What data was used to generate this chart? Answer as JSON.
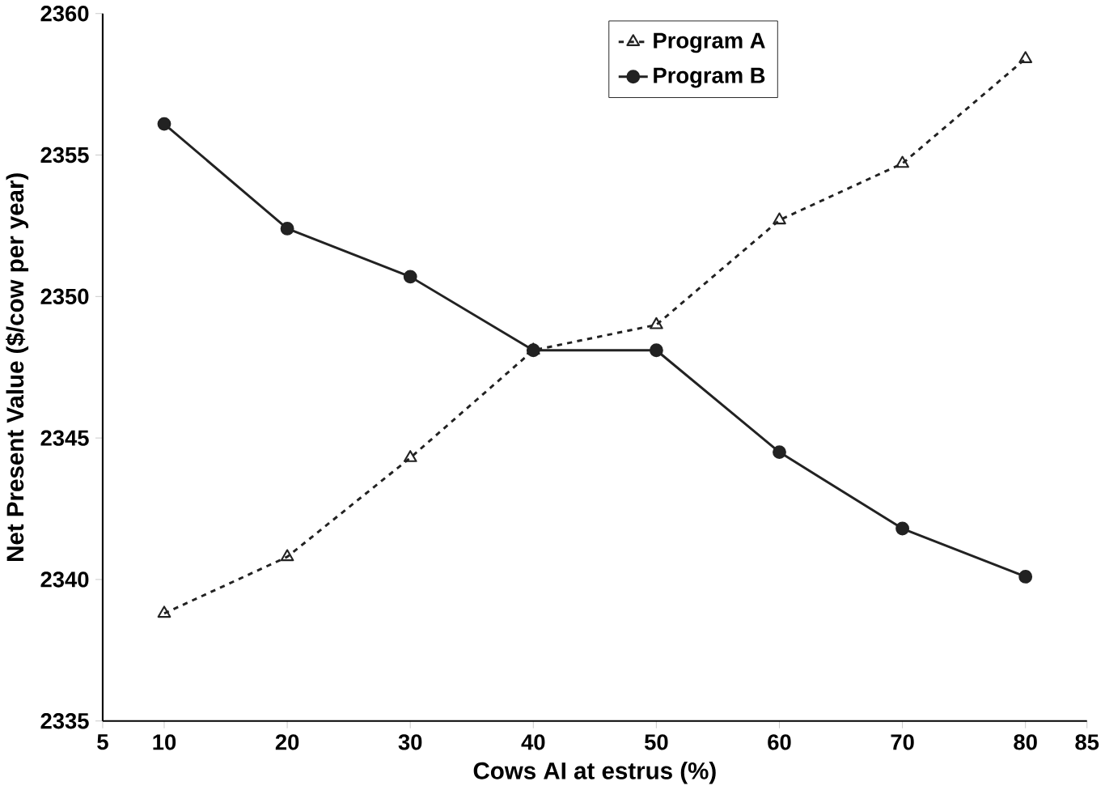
{
  "chart_data": {
    "type": "line",
    "xlabel": "Cows AI at estrus (%)",
    "ylabel": "Net Present Value ($/cow per year)",
    "x": [
      10,
      20,
      30,
      40,
      50,
      60,
      70,
      80
    ],
    "series": [
      {
        "name": "Program A",
        "color": "#222222",
        "marker": "triangle",
        "line_style": "dashed",
        "values": [
          2338.8,
          2340.8,
          2344.3,
          2348.1,
          2349.0,
          2352.7,
          2354.7,
          2358.4
        ]
      },
      {
        "name": "Program B",
        "color": "#222222",
        "marker": "circle",
        "line_style": "solid",
        "values": [
          2356.1,
          2352.4,
          2350.7,
          2348.1,
          2348.1,
          2344.5,
          2341.8,
          2340.1
        ]
      }
    ],
    "xlim": [
      5,
      85
    ],
    "xticks": [
      5,
      10,
      20,
      30,
      40,
      50,
      60,
      70,
      80,
      85
    ],
    "ylim": [
      2335,
      2360
    ],
    "yticks": [
      2335,
      2340,
      2345,
      2350,
      2355,
      2360
    ],
    "grid": false,
    "legend": "top"
  }
}
